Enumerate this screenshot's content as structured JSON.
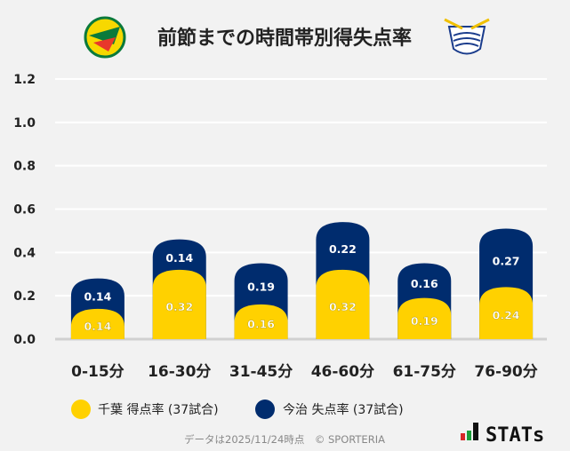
{
  "chart_data": {
    "type": "bar",
    "stacked": true,
    "title": "前節までの時間帯別得失点率",
    "categories": [
      "0-15分",
      "16-30分",
      "31-45分",
      "46-60分",
      "61-75分",
      "76-90分"
    ],
    "series": [
      {
        "name": "千葉 得点率 (37試合)",
        "color": "#ffd100",
        "values": [
          0.14,
          0.32,
          0.16,
          0.32,
          0.19,
          0.24
        ]
      },
      {
        "name": "今治 失点率 (37試合)",
        "color": "#002c6e",
        "values": [
          0.14,
          0.14,
          0.19,
          0.22,
          0.16,
          0.27
        ]
      }
    ],
    "yticks": [
      "0.0",
      "0.2",
      "0.4",
      "0.6",
      "0.8",
      "1.0",
      "1.2"
    ],
    "ylim": [
      0,
      1.2
    ],
    "grid": true,
    "legend_position": "bottom"
  },
  "logos": {
    "left": "JEF United Chiba crest",
    "right": "FC Imabari crest"
  },
  "footer": {
    "note": "データは2025/11/24時点　© SPORTERIA",
    "brand": "STATs"
  }
}
